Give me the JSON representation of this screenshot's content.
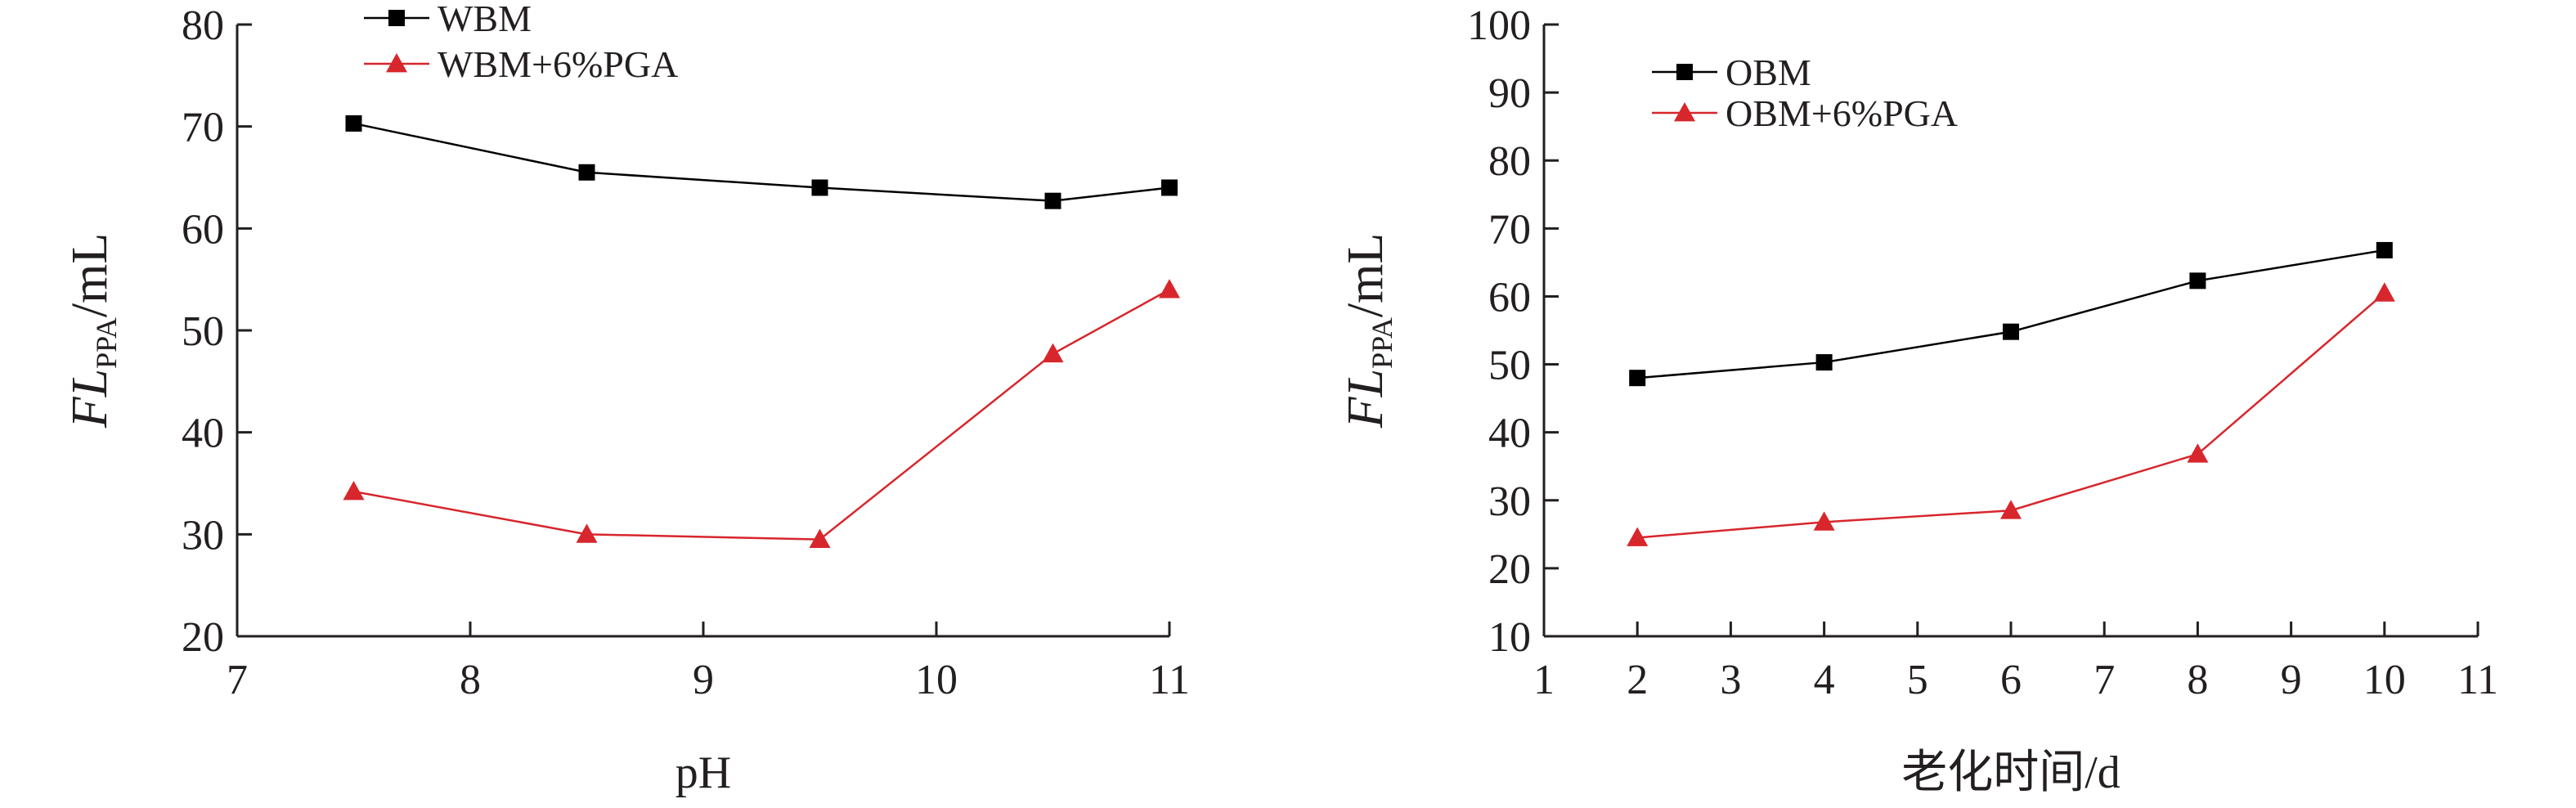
{
  "chart_data": [
    {
      "type": "line",
      "title": "",
      "xlabel": "pH",
      "ylabel": {
        "main": "FL",
        "subscript": "PPA",
        "unit": "/mL"
      },
      "xlim": [
        7,
        11
      ],
      "ylim": [
        20,
        80
      ],
      "xticks": [
        7,
        8,
        9,
        10,
        11
      ],
      "yticks": [
        20,
        30,
        40,
        50,
        60,
        70,
        80
      ],
      "grid": false,
      "legend_position": "top-left",
      "series": [
        {
          "name": "WBM",
          "color": "#000000",
          "marker": "square",
          "x": [
            7.5,
            8.5,
            9.5,
            10.5,
            11
          ],
          "y": [
            70.3,
            65.5,
            64.0,
            62.7,
            64.0
          ]
        },
        {
          "name": "WBM+6%PGA",
          "color": "#d7262c",
          "marker": "triangle",
          "x": [
            7.5,
            8.5,
            9.5,
            10.5,
            11
          ],
          "y": [
            34.2,
            30.0,
            29.5,
            47.7,
            54.0
          ]
        }
      ]
    },
    {
      "type": "line",
      "title": "",
      "xlabel": "老化时间/d",
      "ylabel": {
        "main": "FL",
        "subscript": "PPA",
        "unit": "/mL"
      },
      "xlim": [
        1,
        11
      ],
      "ylim": [
        10,
        100
      ],
      "xticks": [
        1,
        2,
        3,
        4,
        5,
        6,
        7,
        8,
        9,
        10,
        11
      ],
      "yticks": [
        10,
        20,
        30,
        40,
        50,
        60,
        70,
        80,
        90,
        100
      ],
      "grid": false,
      "legend_position": "top-left",
      "series": [
        {
          "name": "OBM",
          "color": "#000000",
          "marker": "square",
          "x": [
            2,
            4,
            6,
            8,
            10
          ],
          "y": [
            48.0,
            50.3,
            54.8,
            62.3,
            66.8
          ]
        },
        {
          "name": "OBM+6%PGA",
          "color": "#d7262c",
          "marker": "triangle",
          "x": [
            2,
            4,
            6,
            8,
            10
          ],
          "y": [
            24.5,
            26.8,
            28.5,
            36.8,
            60.5
          ]
        }
      ]
    }
  ]
}
